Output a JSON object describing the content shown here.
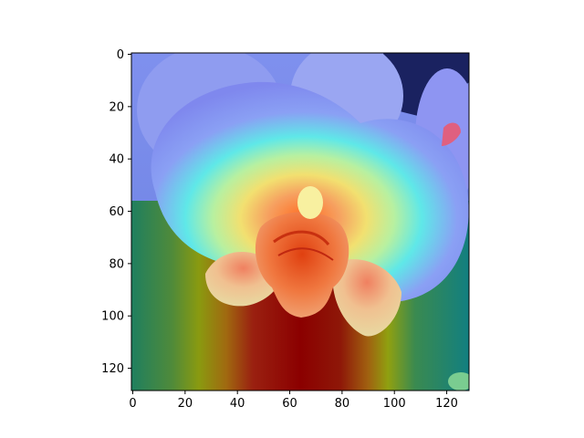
{
  "image": {
    "description": "orchid with attention heatmap overlay",
    "heatmap_colormap": "jet",
    "x_axis": {
      "ticks": [
        "0",
        "20",
        "40",
        "60",
        "80",
        "100",
        "120"
      ],
      "values": [
        0,
        20,
        40,
        60,
        80,
        100,
        120
      ],
      "range": [
        0,
        128
      ]
    },
    "y_axis": {
      "ticks": [
        "0",
        "20",
        "40",
        "60",
        "80",
        "100",
        "120"
      ],
      "values": [
        0,
        20,
        40,
        60,
        80,
        100,
        120
      ],
      "range": [
        0,
        128
      ]
    },
    "colors": {
      "background": "#ffffff",
      "axis": "#000000",
      "flower_blue": "#7c8cf0",
      "heat_red": "#8b0000",
      "heat_yellow": "#d8d000",
      "heat_cyan": "#40e0e0"
    }
  }
}
